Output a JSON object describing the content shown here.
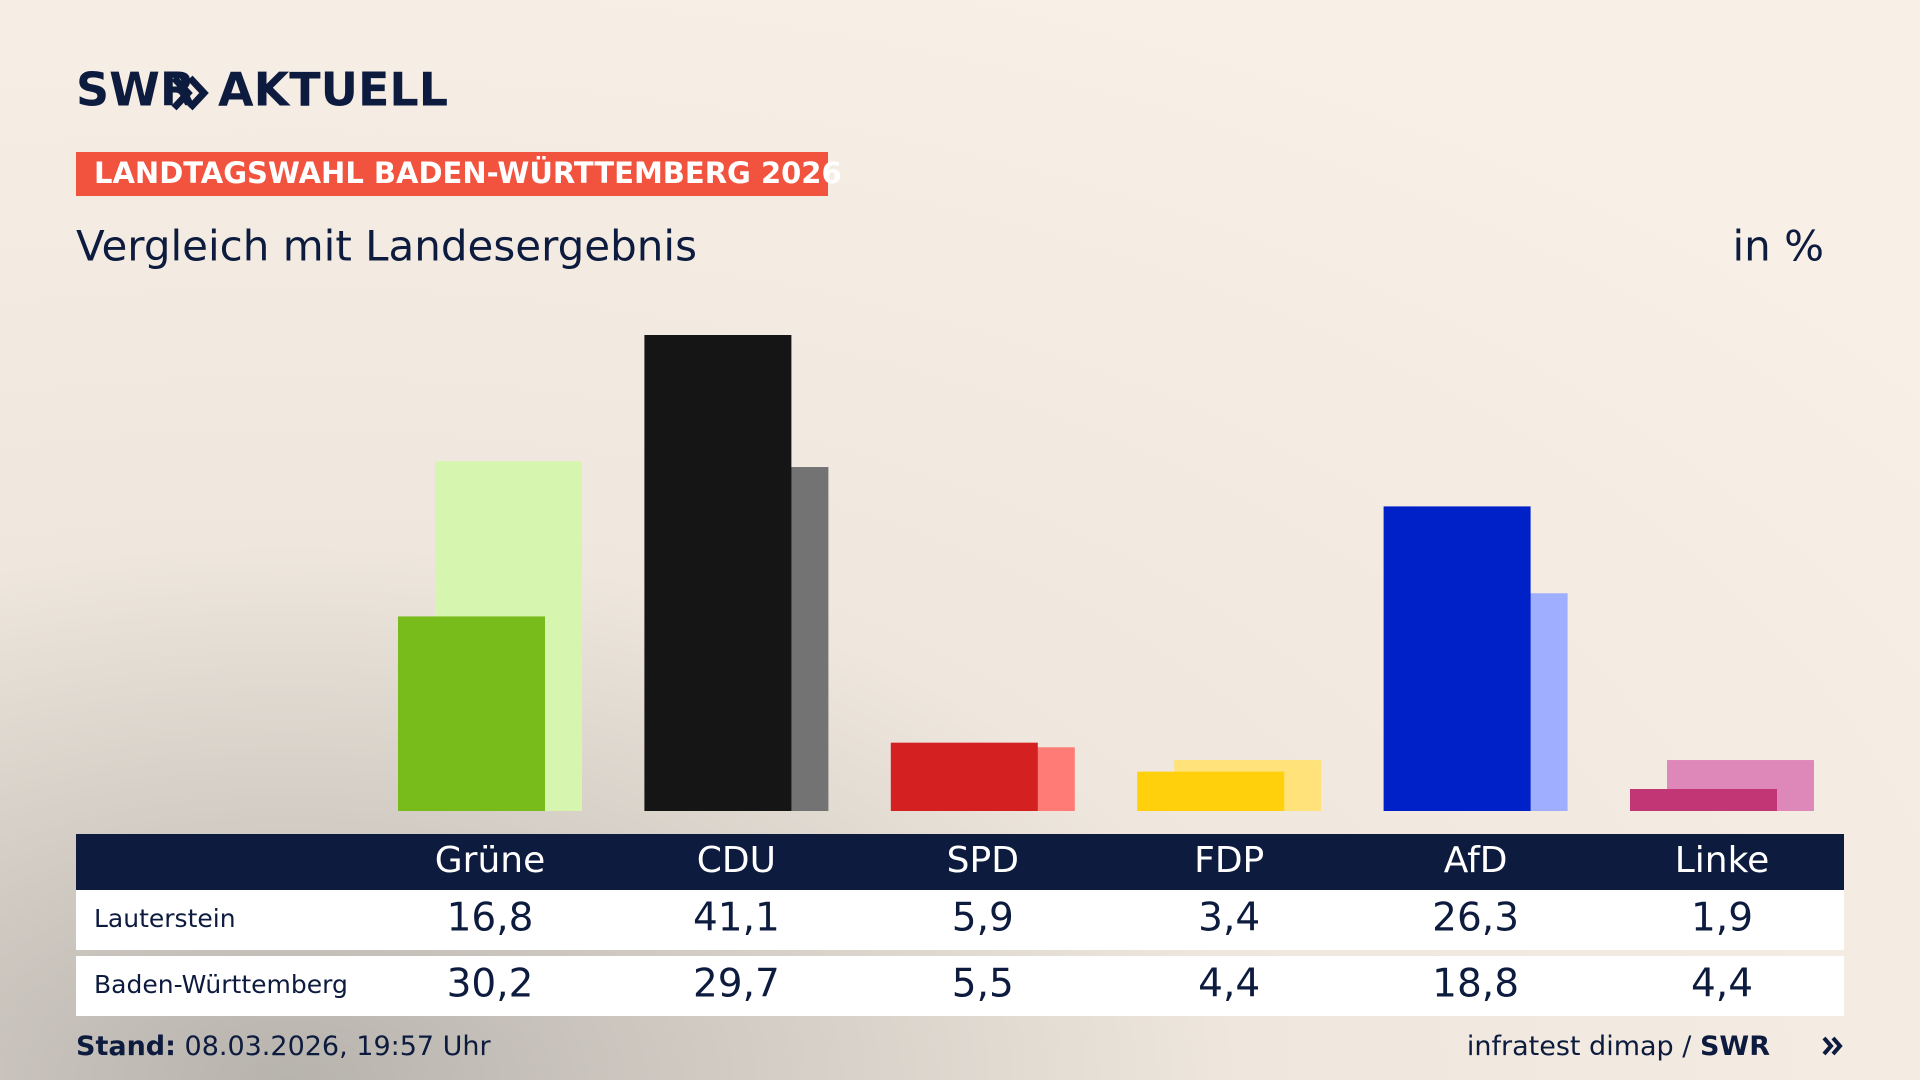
{
  "header": {
    "brand": [
      "SWR",
      "AKTUELL"
    ]
  },
  "chart_data": {
    "type": "bar",
    "title": "LANDTAGSWAHL BADEN-WÜRTTEMBERG 2026",
    "subtitle": "Vergleich mit Landesergebnis",
    "unit": "in %",
    "categories": [
      "Grüne",
      "CDU",
      "SPD",
      "FDP",
      "AfD",
      "Linke"
    ],
    "series": [
      {
        "name": "Lauterstein",
        "colors": [
          "#78bc1b",
          "#151515",
          "#d42020",
          "#ffd00b",
          "#0020c8",
          "#c23675"
        ],
        "values": [
          16.8,
          41.1,
          5.9,
          3.4,
          26.3,
          1.9
        ],
        "value_labels": [
          "16,8",
          "41,1",
          "5,9",
          "3,4",
          "26,3",
          "1,9"
        ]
      },
      {
        "name": "Baden-Württemberg",
        "colors": [
          "#d6f5ae",
          "#737373",
          "#ff7b76",
          "#ffe27a",
          "#a0aeff",
          "#dd88b8"
        ],
        "values": [
          30.2,
          29.7,
          5.5,
          4.4,
          18.8,
          4.4
        ],
        "value_labels": [
          "30,2",
          "29,7",
          "5,5",
          "4,4",
          "18,8",
          "4,4"
        ]
      }
    ]
  },
  "footer": {
    "stand_label": "Stand:",
    "stand": "08.03.2026, 19:57 Uhr",
    "source": "infratest dimap /",
    "brand": "SWR"
  }
}
